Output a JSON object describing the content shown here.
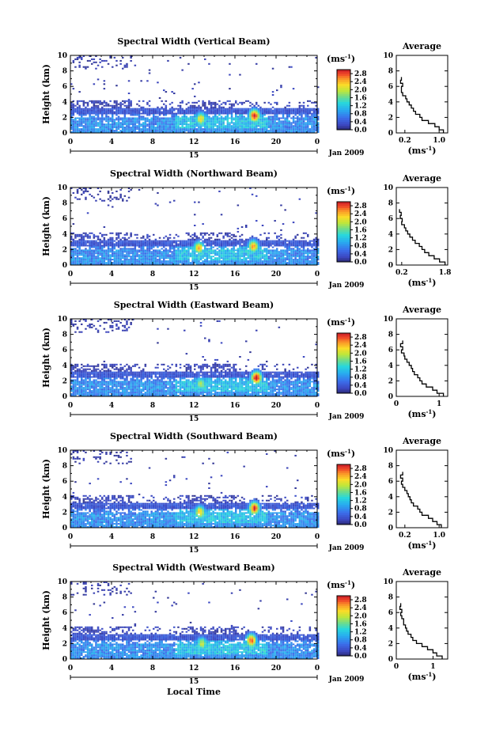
{
  "chart_data": [
    {
      "type": "heatmap",
      "title": "Spectral Width (Vertical Beam)",
      "ylabel": "Height (km)",
      "xticks": [
        "0",
        "4",
        "8",
        "12",
        "16",
        "20",
        "0"
      ],
      "yticks": [
        "0",
        "2",
        "4",
        "6",
        "8",
        "10"
      ],
      "xlim": [
        0,
        24
      ],
      "ylim": [
        0,
        10
      ],
      "date_label": "15",
      "month_label": "Jan 2009",
      "colorbar": {
        "unit": "(ms",
        "unit_sup": "-1",
        "unit_close": ")",
        "ticks": [
          "0.0",
          "0.4",
          "0.8",
          "1.2",
          "1.6",
          "2.0",
          "2.4",
          "2.8"
        ],
        "range": [
          0,
          3.0
        ]
      },
      "hotspots": [
        {
          "t": 12.6,
          "h": 1.8,
          "v": 2.1
        },
        {
          "t": 17.8,
          "h": 2.2,
          "v": 2.9
        }
      ],
      "profile": {
        "title": "Average",
        "xlabel": "(ms",
        "xlabel_sup": "-1",
        "xlabel_close": ")",
        "xticks": [
          "0.2",
          "1.0"
        ],
        "xtick_values": [
          0.2,
          1.0
        ],
        "xlim": [
          0,
          1.2
        ],
        "yticks": [
          "0",
          "2",
          "4",
          "6",
          "8",
          "10"
        ],
        "height": [
          0.2,
          0.6,
          1.0,
          1.4,
          1.8,
          2.2,
          2.6,
          3.0,
          3.4,
          3.8,
          4.2,
          4.6,
          5.0,
          5.4,
          5.8,
          6.2,
          6.6,
          7.0
        ],
        "value": [
          1.1,
          1.0,
          0.9,
          0.75,
          0.6,
          0.55,
          0.45,
          0.4,
          0.35,
          0.3,
          0.25,
          0.22,
          0.15,
          0.12,
          0.12,
          0.15,
          0.1,
          0.12
        ]
      }
    },
    {
      "type": "heatmap",
      "title": "Spectral Width (Northward Beam)",
      "ylabel": "Height (km)",
      "xticks": [
        "0",
        "4",
        "8",
        "12",
        "16",
        "20",
        "0"
      ],
      "yticks": [
        "0",
        "2",
        "4",
        "6",
        "8",
        "10"
      ],
      "xlim": [
        0,
        24
      ],
      "ylim": [
        0,
        10
      ],
      "date_label": "15",
      "month_label": "Jan 2009",
      "colorbar": {
        "unit": "(ms",
        "unit_sup": "-1",
        "unit_close": ")",
        "ticks": [
          "0.0",
          "0.4",
          "0.8",
          "1.2",
          "1.6",
          "2.0",
          "2.4",
          "2.8"
        ],
        "range": [
          0,
          3.0
        ]
      },
      "hotspots": [
        {
          "t": 12.4,
          "h": 2.2,
          "v": 2.3
        },
        {
          "t": 17.7,
          "h": 2.4,
          "v": 2.4
        }
      ],
      "profile": {
        "title": "Average",
        "xlabel": "(ms",
        "xlabel_sup": "-1",
        "xlabel_close": ")",
        "xticks": [
          "0.2",
          "1.8"
        ],
        "xtick_values": [
          0.2,
          1.8
        ],
        "xlim": [
          0,
          1.9
        ],
        "yticks": [
          "0",
          "2",
          "4",
          "6",
          "8",
          "10"
        ],
        "height": [
          0.2,
          0.6,
          1.0,
          1.4,
          1.8,
          2.2,
          2.6,
          3.0,
          3.4,
          3.8,
          4.2,
          4.6,
          5.0,
          5.4,
          5.8,
          6.2,
          6.6,
          7.0
        ],
        "value": [
          1.8,
          1.6,
          1.4,
          1.2,
          1.05,
          0.95,
          0.85,
          0.7,
          0.6,
          0.5,
          0.42,
          0.35,
          0.3,
          0.2,
          0.22,
          0.15,
          0.18,
          0.12
        ]
      }
    },
    {
      "type": "heatmap",
      "title": "Spectral Width (Eastward Beam)",
      "ylabel": "Height (km)",
      "xticks": [
        "0",
        "4",
        "8",
        "12",
        "16",
        "20",
        "0"
      ],
      "yticks": [
        "0",
        "2",
        "4",
        "6",
        "8",
        "10"
      ],
      "xlim": [
        0,
        24
      ],
      "ylim": [
        0,
        10
      ],
      "date_label": "15",
      "month_label": "Jan 2009",
      "colorbar": {
        "unit": "(ms",
        "unit_sup": "-1",
        "unit_close": ")",
        "ticks": [
          "0.0",
          "0.4",
          "0.8",
          "1.2",
          "1.6",
          "2.0",
          "2.4",
          "2.8"
        ],
        "range": [
          0,
          3.0
        ]
      },
      "hotspots": [
        {
          "t": 12.6,
          "h": 1.6,
          "v": 1.8
        },
        {
          "t": 18.0,
          "h": 2.4,
          "v": 3.0
        }
      ],
      "profile": {
        "title": "Average",
        "xlabel": "(ms",
        "xlabel_sup": "-1",
        "xlabel_close": ")",
        "xticks": [
          "0",
          "1"
        ],
        "xtick_values": [
          0,
          1
        ],
        "xlim": [
          0,
          1.2
        ],
        "yticks": [
          "0",
          "2",
          "4",
          "6",
          "8",
          "10"
        ],
        "height": [
          0.2,
          0.6,
          1.0,
          1.4,
          1.8,
          2.2,
          2.6,
          3.0,
          3.4,
          3.8,
          4.2,
          4.6,
          5.0,
          5.4,
          5.8,
          6.2,
          6.6,
          7.0
        ],
        "value": [
          1.1,
          0.95,
          0.85,
          0.7,
          0.6,
          0.55,
          0.5,
          0.42,
          0.38,
          0.35,
          0.3,
          0.25,
          0.2,
          0.18,
          0.12,
          0.15,
          0.1,
          0.15
        ]
      }
    },
    {
      "type": "heatmap",
      "title": "Spectral Width (Southward Beam)",
      "ylabel": "Height (km)",
      "xticks": [
        "0",
        "4",
        "8",
        "12",
        "16",
        "20",
        "0"
      ],
      "yticks": [
        "0",
        "2",
        "4",
        "6",
        "8",
        "10"
      ],
      "xlim": [
        0,
        24
      ],
      "ylim": [
        0,
        10
      ],
      "date_label": "15",
      "month_label": "Jan 2009",
      "colorbar": {
        "unit": "(ms",
        "unit_sup": "-1",
        "unit_close": ")",
        "ticks": [
          "0.0",
          "0.4",
          "0.8",
          "1.2",
          "1.6",
          "2.0",
          "2.4",
          "2.8"
        ],
        "range": [
          0,
          3.0
        ]
      },
      "hotspots": [
        {
          "t": 12.5,
          "h": 2.0,
          "v": 2.2
        },
        {
          "t": 17.8,
          "h": 2.5,
          "v": 2.8
        }
      ],
      "profile": {
        "title": "Average",
        "xlabel": "(ms",
        "xlabel_sup": "-1",
        "xlabel_close": ")",
        "xticks": [
          "0.2",
          "1.0"
        ],
        "xtick_values": [
          0.2,
          1.0
        ],
        "xlim": [
          0,
          1.2
        ],
        "yticks": [
          "0",
          "2",
          "4",
          "6",
          "8",
          "10"
        ],
        "height": [
          0.2,
          0.6,
          1.0,
          1.4,
          1.8,
          2.2,
          2.6,
          3.0,
          3.4,
          3.8,
          4.2,
          4.6,
          5.0,
          5.4,
          5.8,
          6.2,
          6.6,
          7.0
        ],
        "value": [
          1.05,
          0.95,
          0.85,
          0.75,
          0.6,
          0.55,
          0.5,
          0.4,
          0.35,
          0.32,
          0.28,
          0.25,
          0.2,
          0.15,
          0.12,
          0.15,
          0.1,
          0.15
        ]
      }
    },
    {
      "type": "heatmap",
      "title": "Spectral Width (Westward Beam)",
      "ylabel": "Height (km)",
      "xlabel": "Local Time",
      "xticks": [
        "0",
        "4",
        "8",
        "12",
        "16",
        "20",
        "0"
      ],
      "yticks": [
        "0",
        "2",
        "4",
        "6",
        "8",
        "10"
      ],
      "xlim": [
        0,
        24
      ],
      "ylim": [
        0,
        10
      ],
      "date_label": "15",
      "month_label": "Jan 2009",
      "colorbar": {
        "unit": "(ms",
        "unit_sup": "-1",
        "unit_close": ")",
        "ticks": [
          "0.0",
          "0.4",
          "0.8",
          "1.2",
          "1.6",
          "2.0",
          "2.4",
          "2.8"
        ],
        "range": [
          0,
          3.0
        ]
      },
      "hotspots": [
        {
          "t": 12.7,
          "h": 2.0,
          "v": 1.9
        },
        {
          "t": 17.5,
          "h": 2.4,
          "v": 2.7
        }
      ],
      "profile": {
        "title": "Average",
        "xlabel": "(ms",
        "xlabel_sup": "-1",
        "xlabel_close": ")",
        "xticks": [
          "0",
          "1"
        ],
        "xtick_values": [
          0,
          1
        ],
        "xlim": [
          0,
          1.4
        ],
        "yticks": [
          "0",
          "2",
          "4",
          "6",
          "8",
          "10"
        ],
        "height": [
          0.2,
          0.6,
          1.0,
          1.4,
          1.8,
          2.2,
          2.6,
          3.0,
          3.4,
          3.8,
          4.2,
          4.6,
          5.0,
          5.4,
          5.8,
          6.2,
          6.6,
          7.0
        ],
        "value": [
          1.25,
          1.1,
          1.0,
          0.85,
          0.7,
          0.55,
          0.45,
          0.4,
          0.32,
          0.28,
          0.25,
          0.2,
          0.2,
          0.15,
          0.12,
          0.15,
          0.1,
          0.12
        ]
      }
    }
  ]
}
